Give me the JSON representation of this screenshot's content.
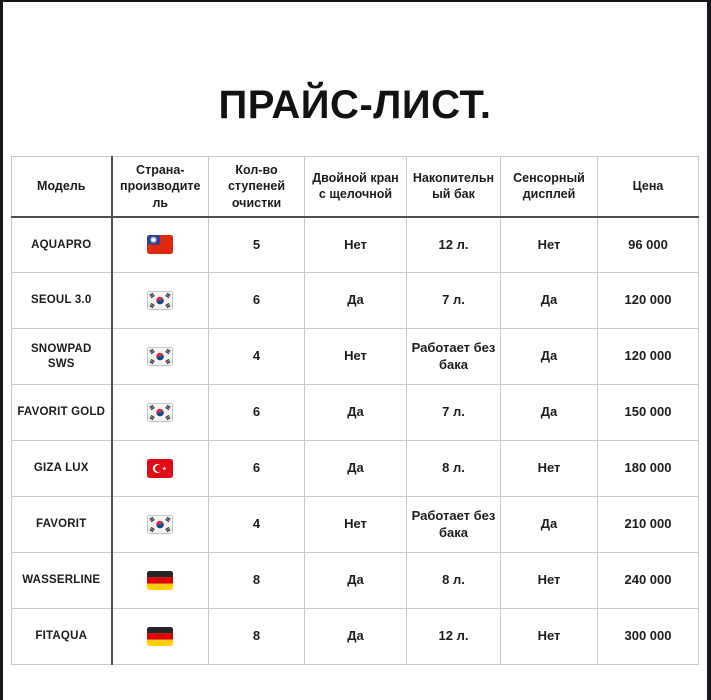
{
  "page": {
    "title": "ПРАЙС-ЛИСТ."
  },
  "table": {
    "columns": [
      "Модель",
      "Страна-производитель",
      "Кол-во ступеней очистки",
      "Двойной кран с щелочной",
      "Накопительный бак",
      "Сенсорный дисплей",
      "Цена"
    ],
    "rows": [
      {
        "model": "AQUAPRO",
        "flag": "taiwan",
        "stages": "5",
        "dual_tap": "Нет",
        "tank": "12 л.",
        "touch": "Нет",
        "price": "96 000"
      },
      {
        "model": "SEOUL 3.0",
        "flag": "south-korea",
        "stages": "6",
        "dual_tap": "Да",
        "tank": "7 л.",
        "touch": "Да",
        "price": "120 000"
      },
      {
        "model": "SNOWPAD SWS",
        "flag": "south-korea",
        "stages": "4",
        "dual_tap": "Нет",
        "tank": "Работает без бака",
        "touch": "Да",
        "price": "120 000"
      },
      {
        "model": "FAVORIT GOLD",
        "flag": "south-korea",
        "stages": "6",
        "dual_tap": "Да",
        "tank": "7 л.",
        "touch": "Да",
        "price": "150 000"
      },
      {
        "model": "GIZA LUX",
        "flag": "turkey",
        "stages": "6",
        "dual_tap": "Да",
        "tank": "8 л.",
        "touch": "Нет",
        "price": "180 000"
      },
      {
        "model": "FAVORIT",
        "flag": "south-korea",
        "stages": "4",
        "dual_tap": "Нет",
        "tank": "Работает без бака",
        "touch": "Да",
        "price": "210 000"
      },
      {
        "model": "WASSERLINE",
        "flag": "germany",
        "stages": "8",
        "dual_tap": "Да",
        "tank": "8 л.",
        "touch": "Нет",
        "price": "240 000"
      },
      {
        "model": "FITAQUA",
        "flag": "germany",
        "stages": "8",
        "dual_tap": "Да",
        "tank": "12 л.",
        "touch": "Нет",
        "price": "300 000"
      }
    ]
  }
}
